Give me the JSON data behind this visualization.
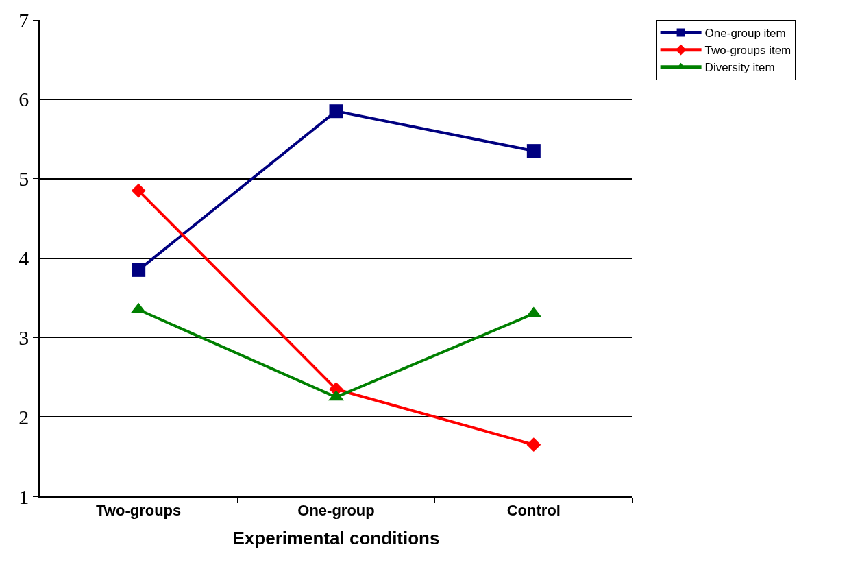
{
  "chart_data": {
    "type": "line",
    "xlabel": "Experimental conditions",
    "categories": [
      "Two-groups",
      "One-group",
      "Control"
    ],
    "series": [
      {
        "name": "One-group item",
        "color": "#000080",
        "marker": "square",
        "values": [
          3.85,
          5.85,
          5.35
        ]
      },
      {
        "name": "Two-groups item",
        "color": "#ff0000",
        "marker": "diamond",
        "values": [
          4.85,
          2.35,
          1.65
        ]
      },
      {
        "name": "Diversity item",
        "color": "#008000",
        "marker": "triangle",
        "values": [
          3.35,
          2.25,
          3.3
        ]
      }
    ],
    "ylim": [
      1,
      7
    ],
    "yticks": [
      1,
      2,
      3,
      4,
      5,
      6,
      7
    ],
    "grid": "y",
    "legend": "top right",
    "line_style": "solid"
  }
}
